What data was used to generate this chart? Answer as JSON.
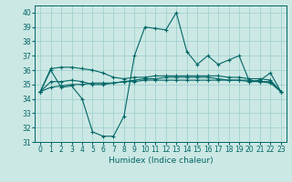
{
  "xlabel": "Humidex (Indice chaleur)",
  "xlim": [
    -0.5,
    23.5
  ],
  "ylim": [
    31,
    40.5
  ],
  "yticks": [
    31,
    32,
    33,
    34,
    35,
    36,
    37,
    38,
    39,
    40
  ],
  "xticks": [
    0,
    1,
    2,
    3,
    4,
    5,
    6,
    7,
    8,
    9,
    10,
    11,
    12,
    13,
    14,
    15,
    16,
    17,
    18,
    19,
    20,
    21,
    22,
    23
  ],
  "bg_color": "#cce8e4",
  "grid_color": "#99cccc",
  "line_color": "#006666",
  "line1": [
    34.5,
    36.0,
    34.8,
    34.9,
    34.0,
    31.7,
    31.4,
    31.4,
    32.8,
    37.0,
    39.0,
    38.9,
    38.8,
    40.0,
    37.3,
    36.4,
    37.0,
    36.4,
    36.7,
    37.0,
    35.2,
    35.3,
    35.8,
    34.5
  ],
  "line2": [
    34.5,
    36.1,
    36.2,
    36.2,
    36.1,
    36.0,
    35.8,
    35.5,
    35.4,
    35.5,
    35.5,
    35.6,
    35.6,
    35.6,
    35.6,
    35.6,
    35.6,
    35.6,
    35.5,
    35.5,
    35.4,
    35.4,
    35.3,
    34.5
  ],
  "line3": [
    34.5,
    34.8,
    34.9,
    35.0,
    35.0,
    35.1,
    35.1,
    35.1,
    35.2,
    35.2,
    35.3,
    35.3,
    35.3,
    35.3,
    35.3,
    35.3,
    35.3,
    35.3,
    35.3,
    35.3,
    35.3,
    35.2,
    35.2,
    34.5
  ],
  "line4": [
    34.5,
    35.2,
    35.2,
    35.3,
    35.2,
    35.0,
    35.0,
    35.1,
    35.2,
    35.3,
    35.4,
    35.4,
    35.5,
    35.5,
    35.5,
    35.5,
    35.5,
    35.4,
    35.3,
    35.3,
    35.2,
    35.2,
    35.1,
    34.5
  ],
  "lw": 0.8,
  "ms": 3.0,
  "mew": 0.8,
  "tick_fontsize": 5.5,
  "xlabel_fontsize": 6.5
}
